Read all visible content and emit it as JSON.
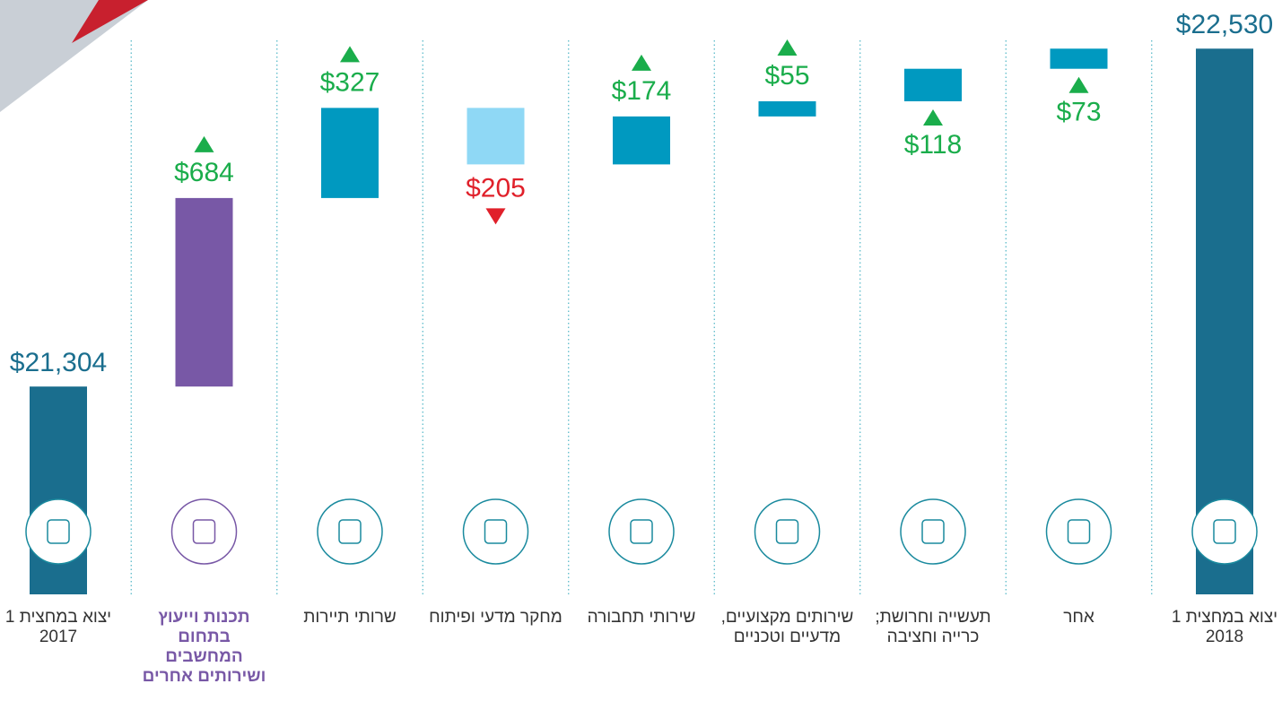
{
  "chart_data": {
    "type": "waterfall",
    "categories": [
      "יצוא במחצית 1 2017",
      "תכנות וייעוץ בתחום המחשבים ושירותים אחרים",
      "שרותי תיירות",
      "מחקר מדעי ופיתוח",
      "שירותי תחבורה",
      "שירותים מקצועיים, מדעיים וטכניים",
      "תעשייה וחרושת; כרייה וחציבה",
      "אחר",
      "יצוא במחצית 1 2018"
    ],
    "values": [
      21304,
      684,
      327,
      -205,
      174,
      55,
      118,
      73,
      22530
    ],
    "value_labels": [
      "$21,304",
      "$684",
      "$327",
      "$205",
      "$174",
      "$55",
      "$118",
      "$73",
      "$22,530"
    ],
    "totals": [
      0,
      8
    ],
    "highlight": 1,
    "bar_colors": [
      "#1a6e8e",
      "#7858a6",
      "#0099c0",
      "#8fd8f5",
      "#0099c0",
      "#0099c0",
      "#0099c0",
      "#0099c0",
      "#1a6e8e"
    ],
    "label_colors": {
      "total": "#1a6e8e",
      "up": "#1aad4b",
      "down": "#e0202a"
    },
    "ylim": [
      20550,
      22700
    ]
  }
}
